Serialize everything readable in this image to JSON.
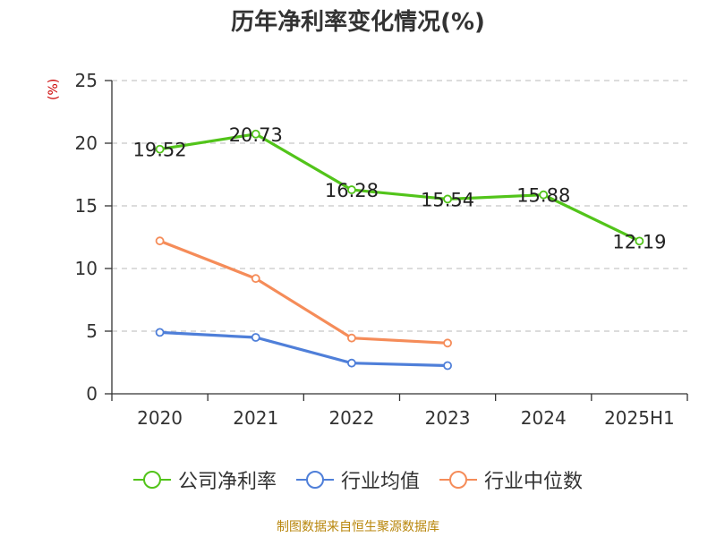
{
  "chart_data": {
    "type": "line",
    "title": "历年净利率变化情况(%)",
    "ylabel": "(%)",
    "categories": [
      "2020",
      "2021",
      "2022",
      "2023",
      "2024",
      "2025H1"
    ],
    "ylim": [
      0,
      25
    ],
    "yticks": [
      0,
      5,
      10,
      15,
      20,
      25
    ],
    "grid": "horizontal dashed",
    "legend_position": "bottom",
    "series": [
      {
        "name": "公司净利率",
        "color": "#52c41a",
        "values": [
          19.52,
          20.73,
          16.28,
          15.54,
          15.88,
          12.19
        ],
        "labels": [
          "19.52",
          "20.73",
          "16.28",
          "15.54",
          "15.88",
          "12.19"
        ]
      },
      {
        "name": "行业均值",
        "color": "#4f7fd9",
        "values": [
          4.9,
          4.5,
          2.45,
          2.25,
          null,
          null
        ]
      },
      {
        "name": "行业中位数",
        "color": "#f58c59",
        "values": [
          12.2,
          9.2,
          4.45,
          4.05,
          null,
          null
        ]
      }
    ]
  },
  "source": "制图数据来自恒生聚源数据库"
}
